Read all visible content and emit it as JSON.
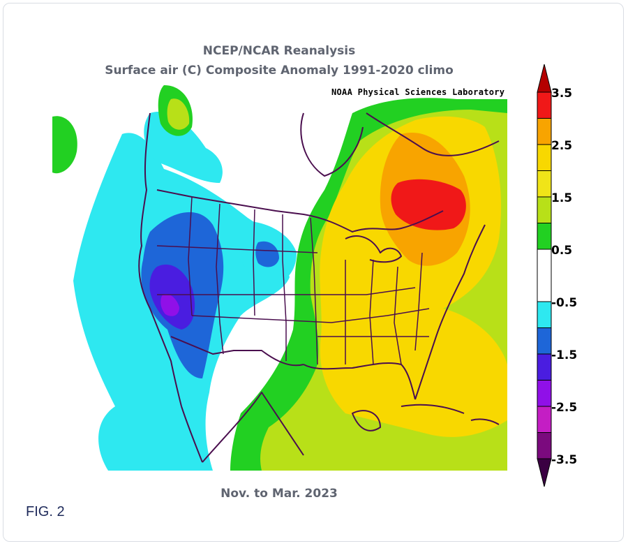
{
  "header": {
    "title_line1": "NCEP/NCAR Reanalysis",
    "title_line2": "Surface air (C) Composite Anomaly 1991-2020 climo"
  },
  "map": {
    "credit": "NOAA Physical Sciences Laboratory",
    "period": "Nov. to Mar. 2023",
    "palette": {
      "lt_-3.5": "#3a0042",
      "-3.5_-3": "#7b0a7e",
      "-3_-2.5": "#c41ec4",
      "-2.5_-2": "#9010e8",
      "-2_-1.5": "#4a1de0",
      "-1.5_-1": "#1e66d8",
      "-1_-0.5": "#2ee8f0",
      "-0.5_0.5": "#ffffff",
      "0.5_1": "#22d022",
      "1_1.5": "#b8e018",
      "1.5_2": "#f0e418",
      "2_2.5": "#f8d800",
      "2.5_3": "#f8a400",
      "3_3.5": "#f01818",
      "gt_3.5": "#b40000"
    },
    "coastline_color": "#4a0e4e"
  },
  "colorbar": {
    "labels": [
      "3.5",
      "2.5",
      "1.5",
      "0.5",
      "-0.5",
      "-1.5",
      "-2.5",
      "-3.5"
    ]
  },
  "figure": {
    "label": "FIG. 2"
  }
}
